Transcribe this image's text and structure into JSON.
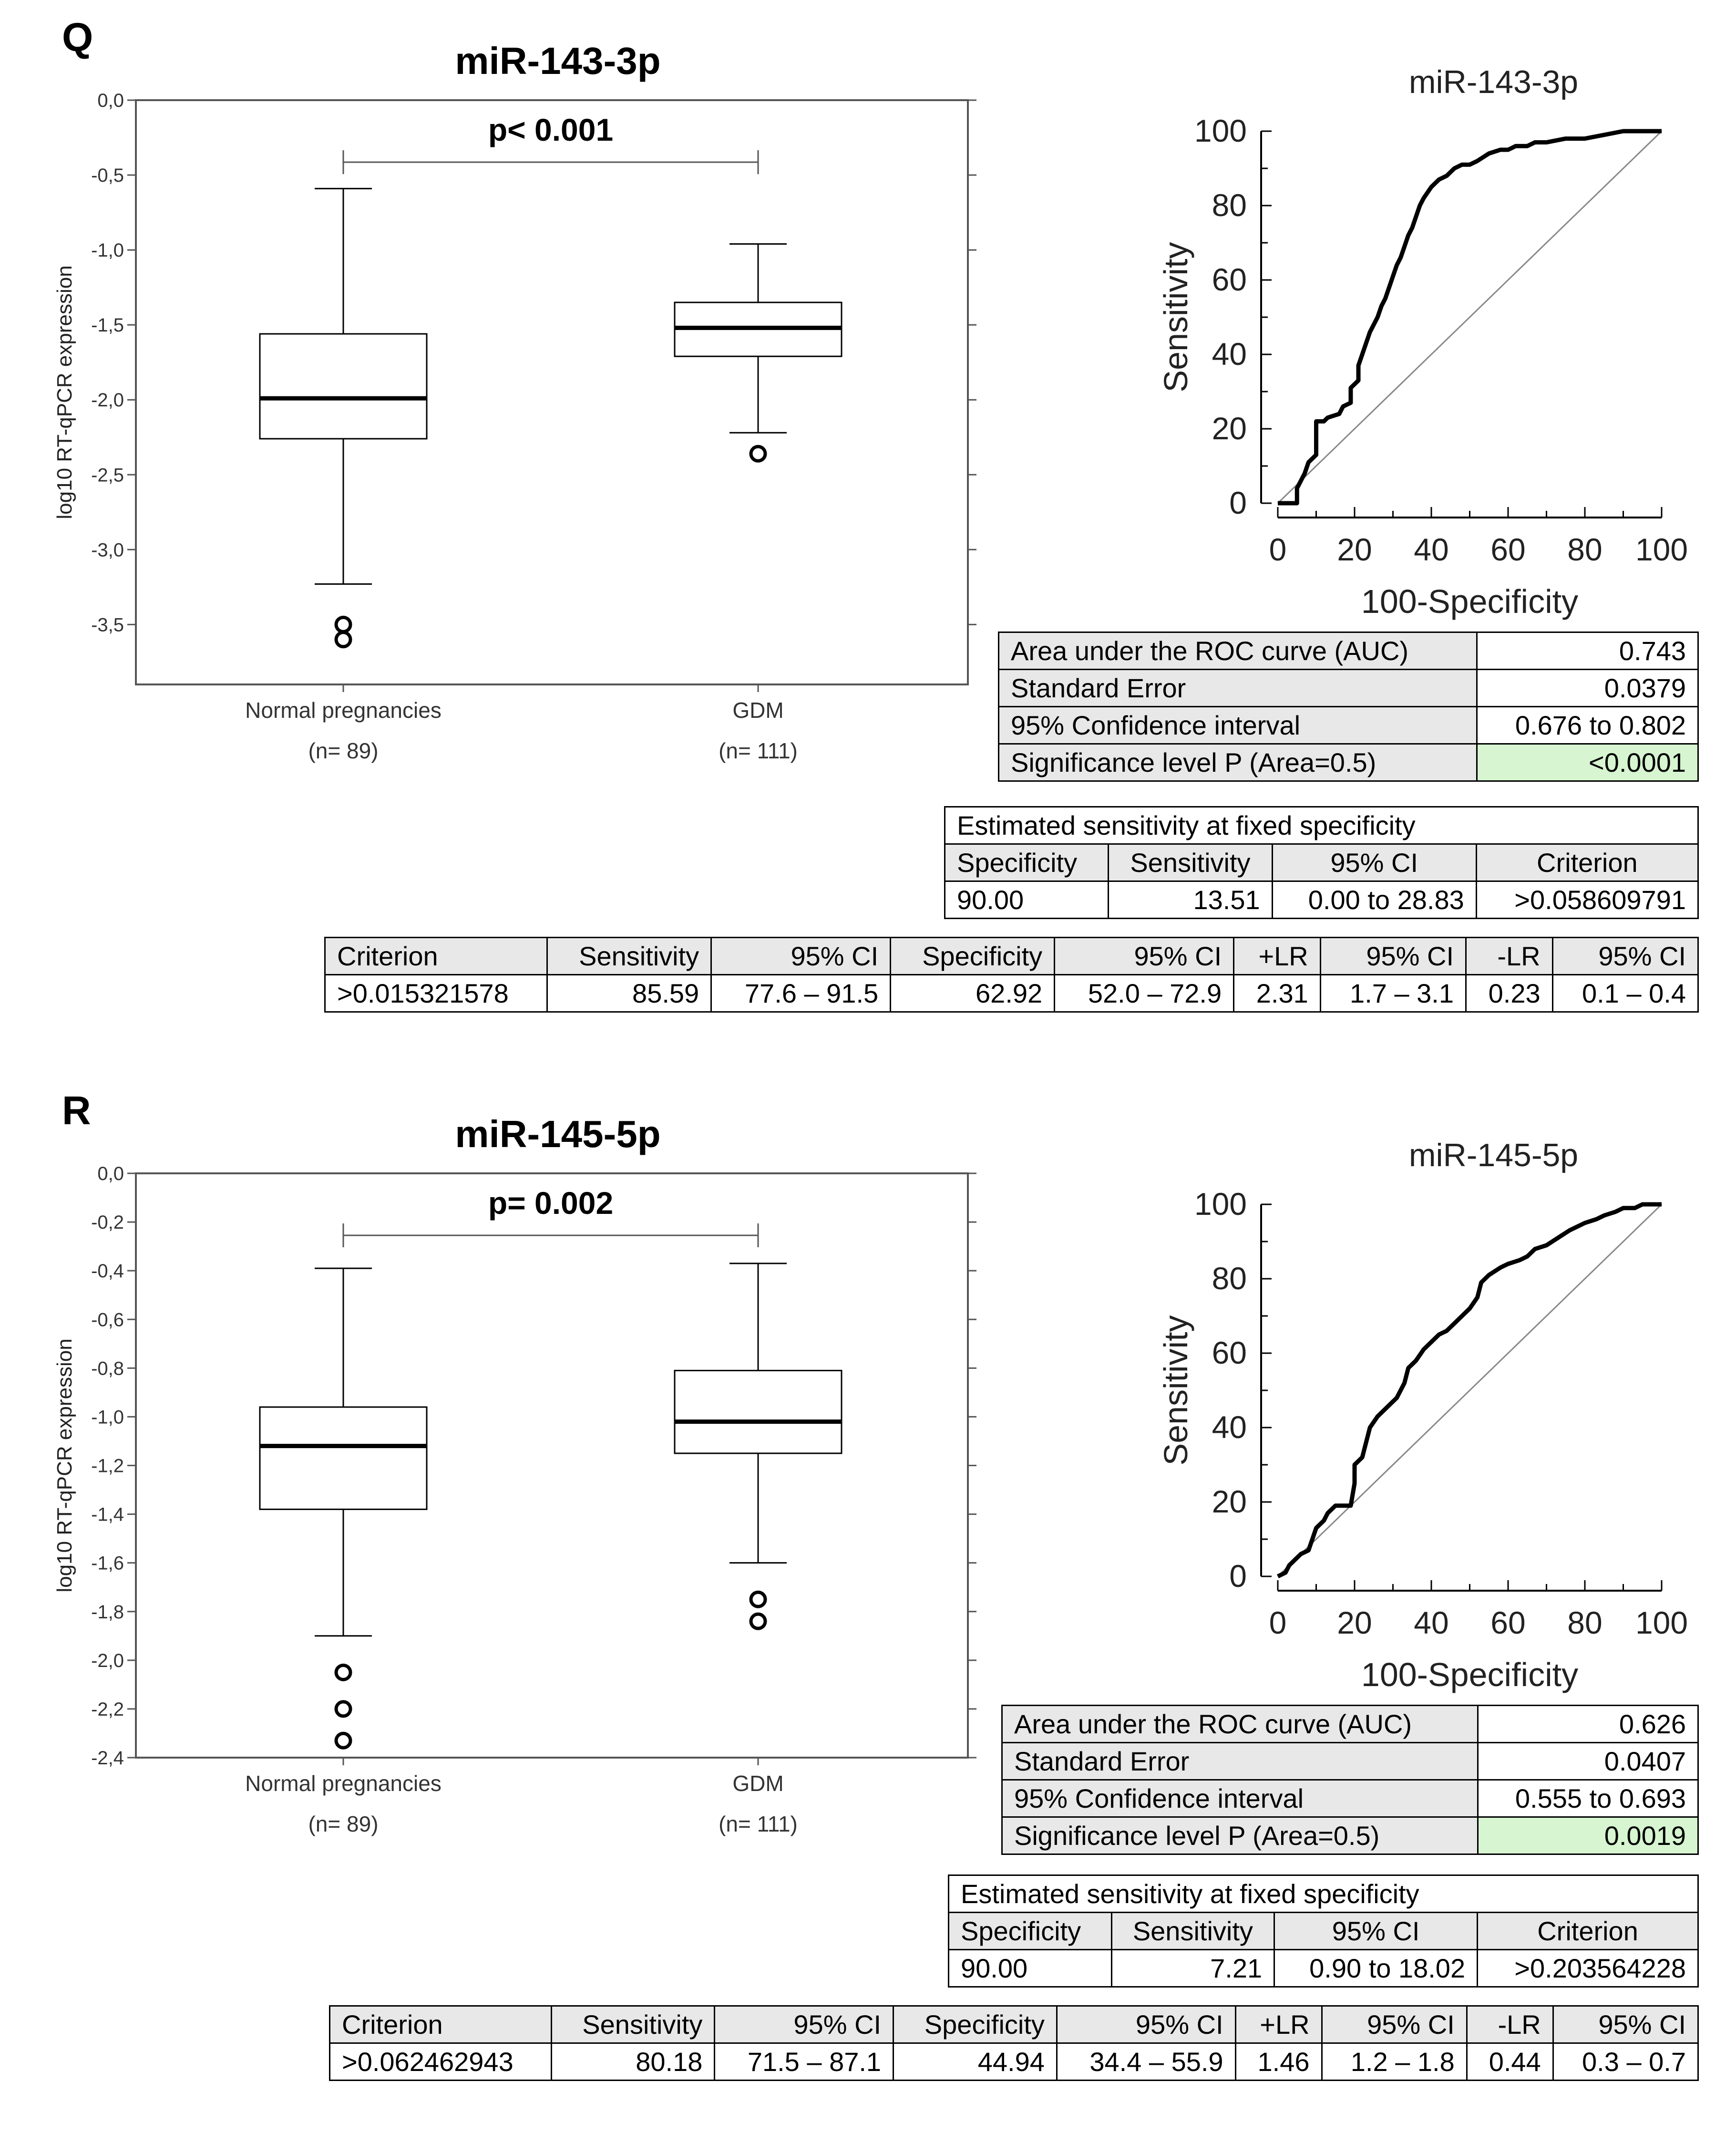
{
  "panels": [
    {
      "letter": "Q",
      "mirna": "miR-143-3p",
      "p_value": "p< 0.001",
      "y_axis_label": "log10 RT-qPCR expression",
      "groups": [
        {
          "name": "Normal pregnancies",
          "n": "(n= 89)"
        },
        {
          "name": "GDM",
          "n": "(n= 111)"
        }
      ],
      "roc_title": "miR-143-3p",
      "roc_ylabel": "Sensitivity",
      "roc_xlabel": "100-Specificity",
      "auc_table": [
        {
          "label": "Area under the ROC curve (AUC)",
          "value": "0.743"
        },
        {
          "label": "Standard Error",
          "value": "0.0379"
        },
        {
          "label": "95% Confidence interval",
          "value": "0.676 to 0.802"
        },
        {
          "label": "Significance level P (Area=0.5)",
          "value": "<0.0001"
        }
      ],
      "est_table": {
        "title": "Estimated sensitivity at fixed specificity",
        "headers": [
          "Specificity",
          "Sensitivity",
          "95% CI",
          "Criterion"
        ],
        "row": [
          "90.00",
          "13.51",
          "0.00 to 28.83",
          ">0.058609791"
        ]
      },
      "crit_table": {
        "headers": [
          "Criterion",
          "Sensitivity",
          "95% CI",
          "Specificity",
          "95% CI",
          "+LR",
          "95% CI",
          "-LR",
          "95% CI"
        ],
        "row": [
          ">0.015321578",
          "85.59",
          "77.6 – 91.5",
          "62.92",
          "52.0 – 72.9",
          "2.31",
          "1.7 – 3.1",
          "0.23",
          "0.1 – 0.4"
        ]
      }
    },
    {
      "letter": "R",
      "mirna": "miR-145-5p",
      "p_value": "p= 0.002",
      "y_axis_label": "log10 RT-qPCR expression",
      "groups": [
        {
          "name": "Normal pregnancies",
          "n": "(n= 89)"
        },
        {
          "name": "GDM",
          "n": "(n= 111)"
        }
      ],
      "roc_title": "miR-145-5p",
      "roc_ylabel": "Sensitivity",
      "roc_xlabel": "100-Specificity",
      "auc_table": [
        {
          "label": "Area under the ROC curve (AUC)",
          "value": "0.626"
        },
        {
          "label": "Standard Error",
          "value": "0.0407"
        },
        {
          "label": "95% Confidence interval",
          "value": "0.555 to 0.693"
        },
        {
          "label": "Significance level P (Area=0.5)",
          "value": "0.0019"
        }
      ],
      "est_table": {
        "title": "Estimated sensitivity at fixed specificity",
        "headers": [
          "Specificity",
          "Sensitivity",
          "95% CI",
          "Criterion"
        ],
        "row": [
          "90.00",
          "7.21",
          "0.90 to 18.02",
          ">0.203564228"
        ]
      },
      "crit_table": {
        "headers": [
          "Criterion",
          "Sensitivity",
          "95% CI",
          "Specificity",
          "95% CI",
          "+LR",
          "95% CI",
          "-LR",
          "95% CI"
        ],
        "row": [
          ">0.062462943",
          "80.18",
          "71.5 – 87.1",
          "44.94",
          "34.4 – 55.9",
          "1.46",
          "1.2 – 1.8",
          "0.44",
          "0.3 – 0.7"
        ]
      }
    }
  ],
  "colors": {
    "significance_fill": "#d6f5d0",
    "table_gray": "#e8e8e8",
    "line": "#000000",
    "diagonal": "#888888"
  },
  "chart_data": [
    {
      "type": "box",
      "title": "miR-143-3p",
      "ylabel": "log10 RT-qPCR expression",
      "ylim": [
        -3.9,
        0.0
      ],
      "yticks": [
        0.0,
        -0.5,
        -1.0,
        -1.5,
        -2.0,
        -2.5,
        -3.0,
        -3.5
      ],
      "ytick_labels": [
        "0,0",
        "-0,5",
        "-1,0",
        "-1,5",
        "-2,0",
        "-2,5",
        "-3,0",
        "-3,5"
      ],
      "categories": [
        "Normal pregnancies",
        "GDM"
      ],
      "boxes": [
        {
          "whisker_low": -3.23,
          "q1": -2.26,
          "median": -1.99,
          "q3": -1.56,
          "whisker_high": -0.59,
          "outliers": [
            -3.5,
            -3.6
          ]
        },
        {
          "whisker_low": -2.22,
          "q1": -1.71,
          "median": -1.52,
          "q3": -1.35,
          "whisker_high": -0.96,
          "outliers": [
            -2.36
          ]
        }
      ],
      "annotation": "p< 0.001"
    },
    {
      "type": "line",
      "title": "miR-143-3p",
      "xlabel": "100-Specificity",
      "ylabel": "Sensitivity",
      "xlim": [
        0,
        100
      ],
      "ylim": [
        0,
        100
      ],
      "xticks": [
        0,
        20,
        40,
        60,
        80,
        100
      ],
      "yticks": [
        0,
        20,
        40,
        60,
        80,
        100
      ],
      "series": [
        {
          "name": "ROC",
          "x": [
            0,
            5,
            5,
            7,
            8,
            10,
            10,
            12,
            13,
            16,
            17,
            19,
            19,
            21,
            21,
            22,
            23,
            24,
            25,
            26,
            27,
            28,
            29,
            30,
            31,
            32,
            33,
            34,
            35,
            36,
            37,
            38,
            40,
            41,
            42,
            44,
            46,
            48,
            50,
            52,
            55,
            58,
            60,
            62,
            65,
            67,
            70,
            75,
            80,
            85,
            90,
            100
          ],
          "y": [
            0,
            0,
            4,
            8,
            11,
            13,
            22,
            22,
            23,
            24,
            26,
            27,
            31,
            33,
            37,
            40,
            43,
            46,
            48,
            50,
            53,
            55,
            58,
            61,
            64,
            66,
            69,
            72,
            74,
            77,
            80,
            82,
            85,
            86,
            87,
            88,
            90,
            91,
            91,
            92,
            94,
            95,
            95,
            96,
            96,
            97,
            97,
            98,
            98,
            99,
            100,
            100
          ]
        },
        {
          "name": "reference",
          "x": [
            0,
            100
          ],
          "y": [
            0,
            100
          ]
        }
      ]
    },
    {
      "type": "box",
      "title": "miR-145-5p",
      "ylabel": "log10 RT-qPCR expression",
      "ylim": [
        -2.4,
        0.0
      ],
      "yticks": [
        0.0,
        -0.2,
        -0.4,
        -0.6,
        -0.8,
        -1.0,
        -1.2,
        -1.4,
        -1.6,
        -1.8,
        -2.0,
        -2.2,
        -2.4
      ],
      "ytick_labels": [
        "0,0",
        "-0,2",
        "-0,4",
        "-0,6",
        "-0,8",
        "-1,0",
        "-1,2",
        "-1,4",
        "-1,6",
        "-1,8",
        "-2,0",
        "-2,2",
        "-2,4"
      ],
      "categories": [
        "Normal pregnancies",
        "GDM"
      ],
      "boxes": [
        {
          "whisker_low": -1.9,
          "q1": -1.38,
          "median": -1.12,
          "q3": -0.96,
          "whisker_high": -0.39,
          "outliers": [
            -2.05,
            -2.2,
            -2.33
          ]
        },
        {
          "whisker_low": -1.6,
          "q1": -1.15,
          "median": -1.02,
          "q3": -0.81,
          "whisker_high": -0.37,
          "outliers": [
            -1.75,
            -1.84
          ]
        }
      ],
      "annotation": "p= 0.002"
    },
    {
      "type": "line",
      "title": "miR-145-5p",
      "xlabel": "100-Specificity",
      "ylabel": "Sensitivity",
      "xlim": [
        0,
        100
      ],
      "ylim": [
        0,
        100
      ],
      "xticks": [
        0,
        20,
        40,
        60,
        80,
        100
      ],
      "yticks": [
        0,
        20,
        40,
        60,
        80,
        100
      ],
      "series": [
        {
          "name": "ROC",
          "x": [
            0,
            2,
            3,
            5,
            6,
            8,
            9,
            10,
            12,
            13,
            15,
            17,
            19,
            20,
            20,
            22,
            23,
            24,
            26,
            28,
            30,
            31,
            33,
            34,
            36,
            38,
            40,
            42,
            44,
            46,
            48,
            50,
            52,
            53,
            55,
            58,
            60,
            63,
            65,
            67,
            70,
            73,
            76,
            78,
            80,
            83,
            85,
            88,
            90,
            93,
            95,
            97,
            100
          ],
          "y": [
            0,
            1,
            3,
            5,
            6,
            7,
            10,
            13,
            15,
            17,
            19,
            19,
            19,
            25,
            30,
            32,
            36,
            40,
            43,
            45,
            47,
            48,
            52,
            56,
            58,
            61,
            63,
            65,
            66,
            68,
            70,
            72,
            75,
            79,
            81,
            83,
            84,
            85,
            86,
            88,
            89,
            91,
            93,
            94,
            95,
            96,
            97,
            98,
            99,
            99,
            100,
            100,
            100
          ]
        },
        {
          "name": "reference",
          "x": [
            0,
            100
          ],
          "y": [
            0,
            100
          ]
        }
      ]
    }
  ]
}
